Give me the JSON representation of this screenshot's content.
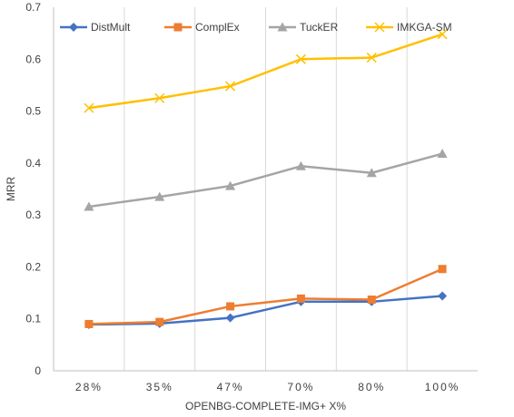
{
  "chart_data": {
    "type": "line",
    "title": "",
    "xlabel": "OPENBG-COMPLETE-IMG+ X%",
    "ylabel": "MRR",
    "categories": [
      "28%",
      "35%",
      "47%",
      "70%",
      "80%",
      "100%"
    ],
    "ylim": [
      0,
      0.7
    ],
    "yticks": [
      "0",
      "0.1",
      "0.2",
      "0.3",
      "0.4",
      "0.5",
      "0.6",
      "0.7"
    ],
    "grid": "vertical lines between categories",
    "legend_position": "top-left, inside plot",
    "series": [
      {
        "name": "DistMult",
        "color": "#4472c4",
        "marker": "diamond",
        "values": [
          0.089,
          0.091,
          0.102,
          0.133,
          0.133,
          0.144
        ]
      },
      {
        "name": "ComplEx",
        "color": "#ed7d31",
        "marker": "square",
        "values": [
          0.09,
          0.094,
          0.124,
          0.139,
          0.137,
          0.196
        ]
      },
      {
        "name": "TuckER",
        "color": "#a5a5a5",
        "marker": "triangle",
        "values": [
          0.316,
          0.335,
          0.356,
          0.394,
          0.381,
          0.418
        ]
      },
      {
        "name": "IMKGA-SM",
        "color": "#ffc000",
        "marker": "x",
        "values": [
          0.506,
          0.525,
          0.548,
          0.6,
          0.603,
          0.648
        ]
      }
    ]
  }
}
